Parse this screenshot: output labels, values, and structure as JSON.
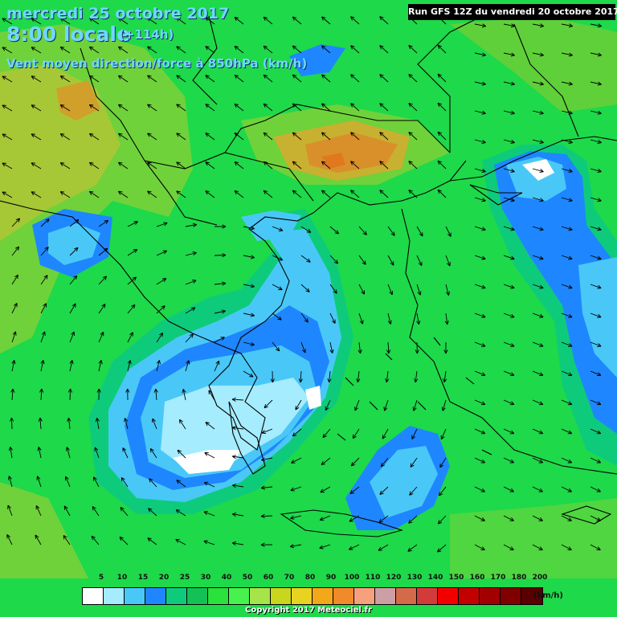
{
  "header": {
    "date": "mercredi 25 octobre 2017",
    "time": "8:00 locale",
    "offset": "(+114h)",
    "parameter": "Vent moyen direction/force à 850hPa (km/h)",
    "run": "Run GFS 12Z du vendredi 20 octobre 2017"
  },
  "legend": {
    "labels": [
      "5",
      "10",
      "15",
      "20",
      "25",
      "30",
      "40",
      "50",
      "60",
      "70",
      "80",
      "90",
      "100",
      "110",
      "120",
      "130",
      "140",
      "150",
      "160",
      "170",
      "180",
      "200"
    ],
    "colors": [
      "#ffffff",
      "#a5ecff",
      "#49c8f7",
      "#1e87ff",
      "#0ecb7b",
      "#14c154",
      "#29e23c",
      "#46f24b",
      "#a6e54a",
      "#c8d61e",
      "#e8d420",
      "#f3a81b",
      "#f08a2a",
      "#f6a07e",
      "#cc9fa5",
      "#d36a4a",
      "#d33b3b",
      "#f20000",
      "#c30000",
      "#a20000",
      "#800000",
      "#5a0000"
    ],
    "unit": "(km/h)"
  },
  "copyright": "Copyright 2017 Meteociel.fr",
  "map": {
    "background_color": "#1ed94a",
    "coastline_color": "#000000",
    "arrow_color": "#000000",
    "contour_colors": {
      "calm": "#ffffff",
      "light": "#a5ecff",
      "moderate": "#49c8f7",
      "strong": "#1e87ff",
      "fresh": "#14c154",
      "olive": "#a6e54a",
      "orange": "#e08a2a"
    }
  }
}
